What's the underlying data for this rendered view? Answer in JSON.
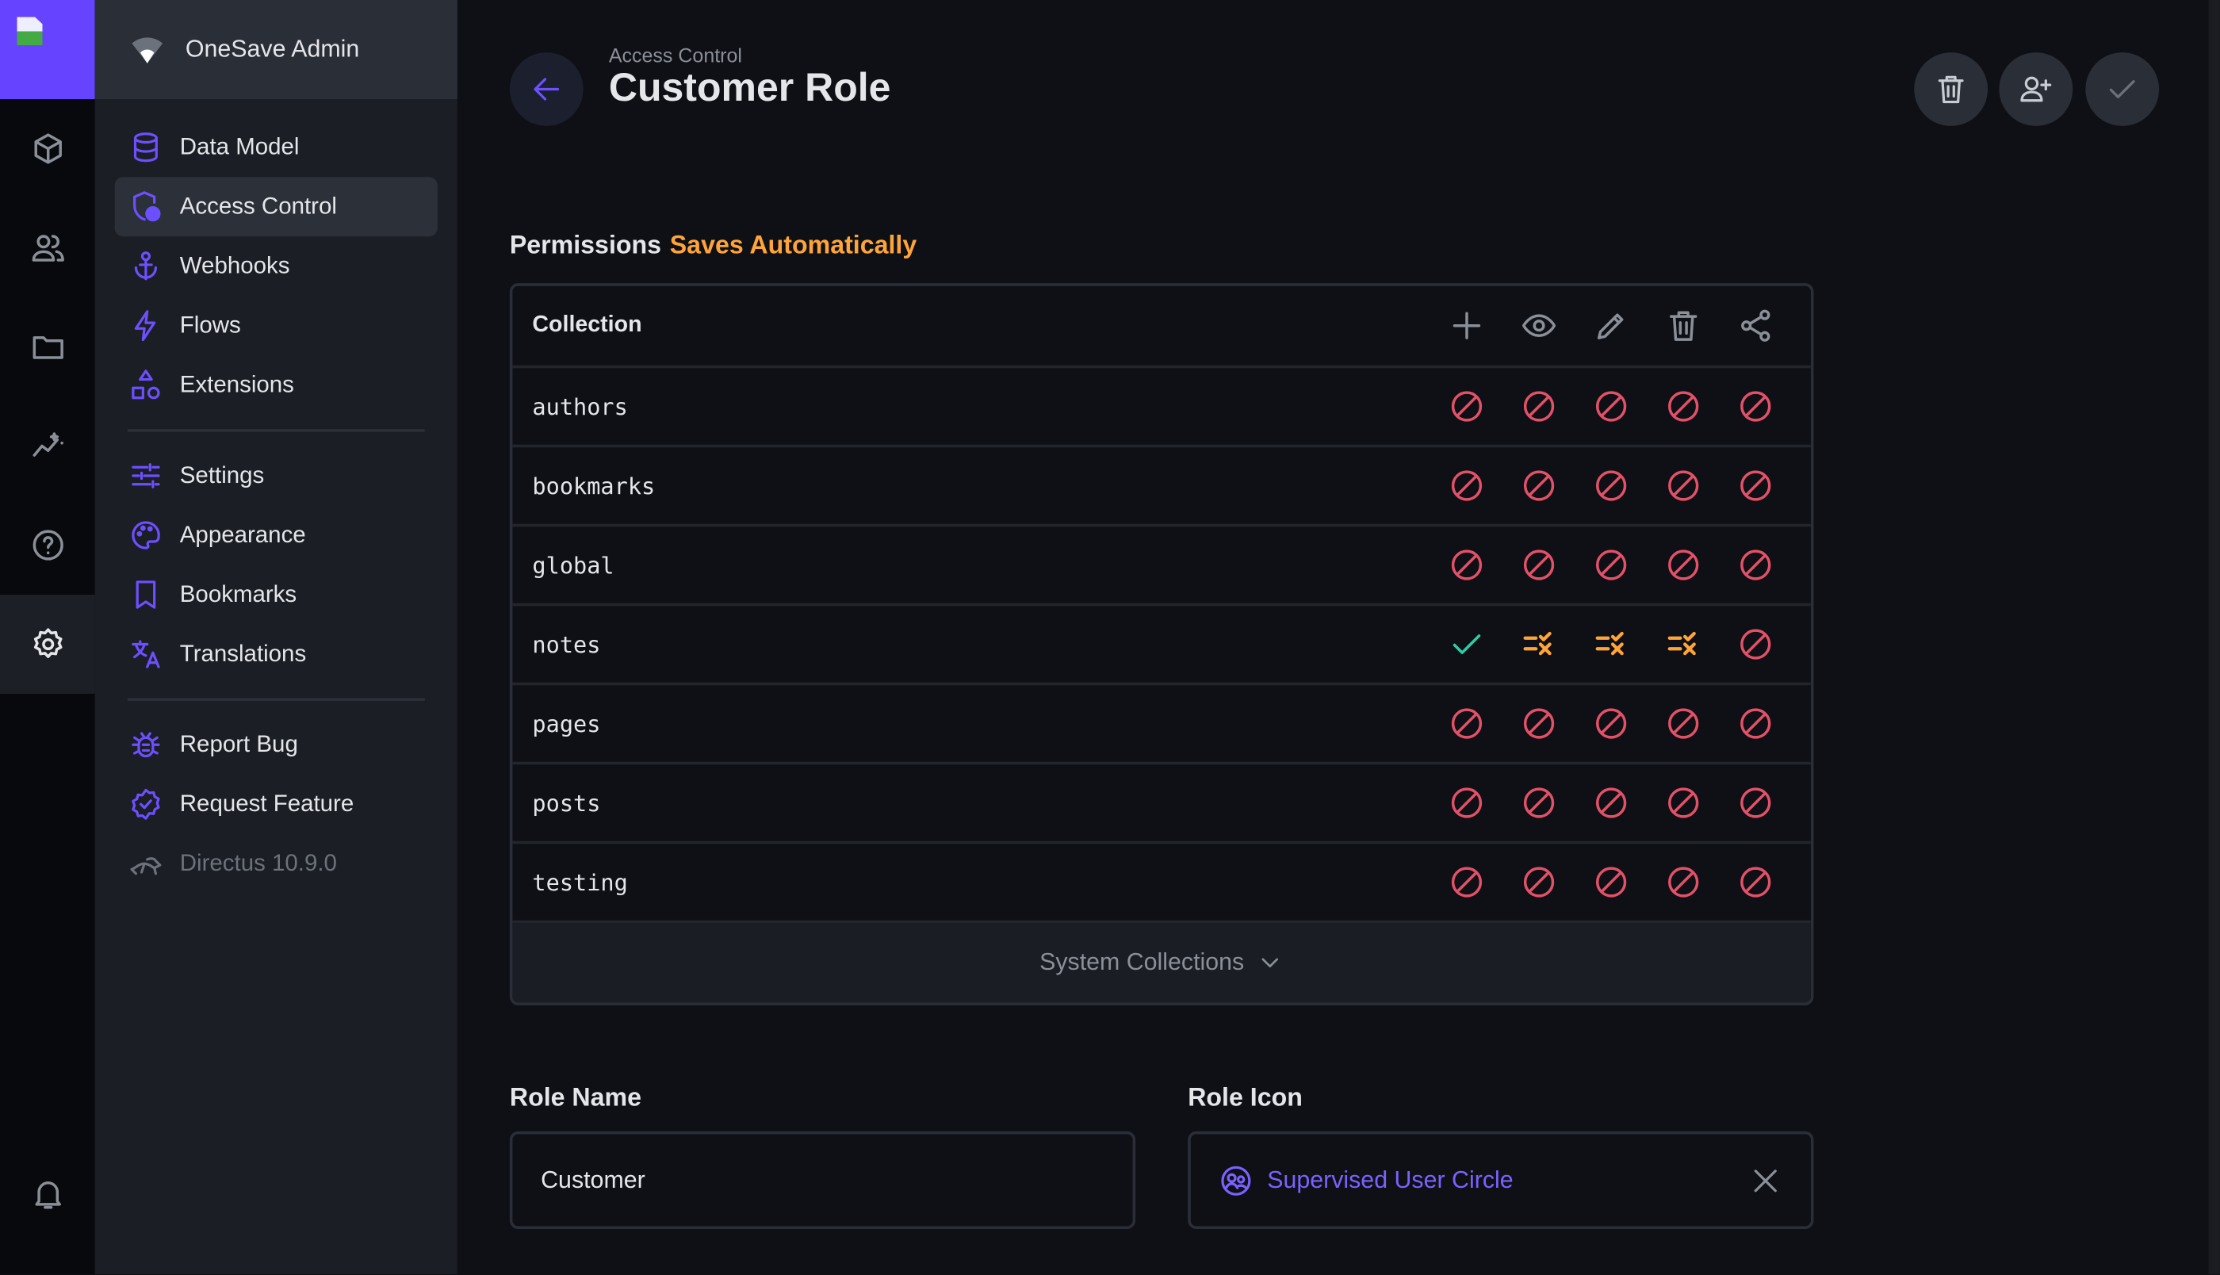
{
  "colors": {
    "brand": "#6644ff",
    "denied": "#e35169",
    "allowed": "#2ecda7",
    "partial": "#ffa439"
  },
  "module_bar": {
    "items": [
      {
        "name": "content",
        "icon": "cube"
      },
      {
        "name": "users",
        "icon": "users"
      },
      {
        "name": "files",
        "icon": "folder"
      },
      {
        "name": "insights",
        "icon": "insights"
      },
      {
        "name": "help",
        "icon": "help"
      },
      {
        "name": "settings",
        "icon": "gear",
        "active": true
      }
    ],
    "bell_icon": "bell"
  },
  "project": {
    "name": "OneSave Admin",
    "icon": "wifi"
  },
  "nav": {
    "groups": [
      [
        {
          "label": "Data Model",
          "icon": "database"
        },
        {
          "label": "Access Control",
          "icon": "shield",
          "active": true
        },
        {
          "label": "Webhooks",
          "icon": "anchor"
        },
        {
          "label": "Flows",
          "icon": "bolt"
        },
        {
          "label": "Extensions",
          "icon": "shapes"
        }
      ],
      [
        {
          "label": "Settings",
          "icon": "sliders"
        },
        {
          "label": "Appearance",
          "icon": "palette"
        },
        {
          "label": "Bookmarks",
          "icon": "bookmark"
        },
        {
          "label": "Translations",
          "icon": "translate"
        }
      ],
      [
        {
          "label": "Report Bug",
          "icon": "bug"
        },
        {
          "label": "Request Feature",
          "icon": "badge"
        },
        {
          "label": "Directus 10.9.0",
          "icon": "rabbit",
          "muted": true
        }
      ]
    ]
  },
  "header": {
    "breadcrumb": "Access Control",
    "title": "Customer Role",
    "back_icon": "arrow-left",
    "actions": [
      {
        "name": "delete",
        "icon": "trash"
      },
      {
        "name": "invite-user",
        "icon": "person-add"
      },
      {
        "name": "save",
        "icon": "check"
      }
    ]
  },
  "permissions": {
    "label": "Permissions",
    "note": "Saves Automatically",
    "column_header": "Collection",
    "action_icons": [
      "plus",
      "eye",
      "pencil",
      "trash",
      "share"
    ],
    "rows": [
      {
        "collection": "authors",
        "levels": [
          "none",
          "none",
          "none",
          "none",
          "none"
        ]
      },
      {
        "collection": "bookmarks",
        "levels": [
          "none",
          "none",
          "none",
          "none",
          "none"
        ]
      },
      {
        "collection": "global",
        "levels": [
          "none",
          "none",
          "none",
          "none",
          "none"
        ]
      },
      {
        "collection": "notes",
        "levels": [
          "all",
          "partial",
          "partial",
          "partial",
          "none"
        ]
      },
      {
        "collection": "pages",
        "levels": [
          "none",
          "none",
          "none",
          "none",
          "none"
        ]
      },
      {
        "collection": "posts",
        "levels": [
          "none",
          "none",
          "none",
          "none",
          "none"
        ]
      },
      {
        "collection": "testing",
        "levels": [
          "none",
          "none",
          "none",
          "none",
          "none"
        ]
      }
    ],
    "system_collections": "System Collections"
  },
  "form": {
    "role_name_label": "Role Name",
    "role_name_value": "Customer",
    "role_icon_label": "Role Icon",
    "role_icon_value": "Supervised User Circle",
    "role_icon_icon": "supervised",
    "clear_icon": "close"
  }
}
